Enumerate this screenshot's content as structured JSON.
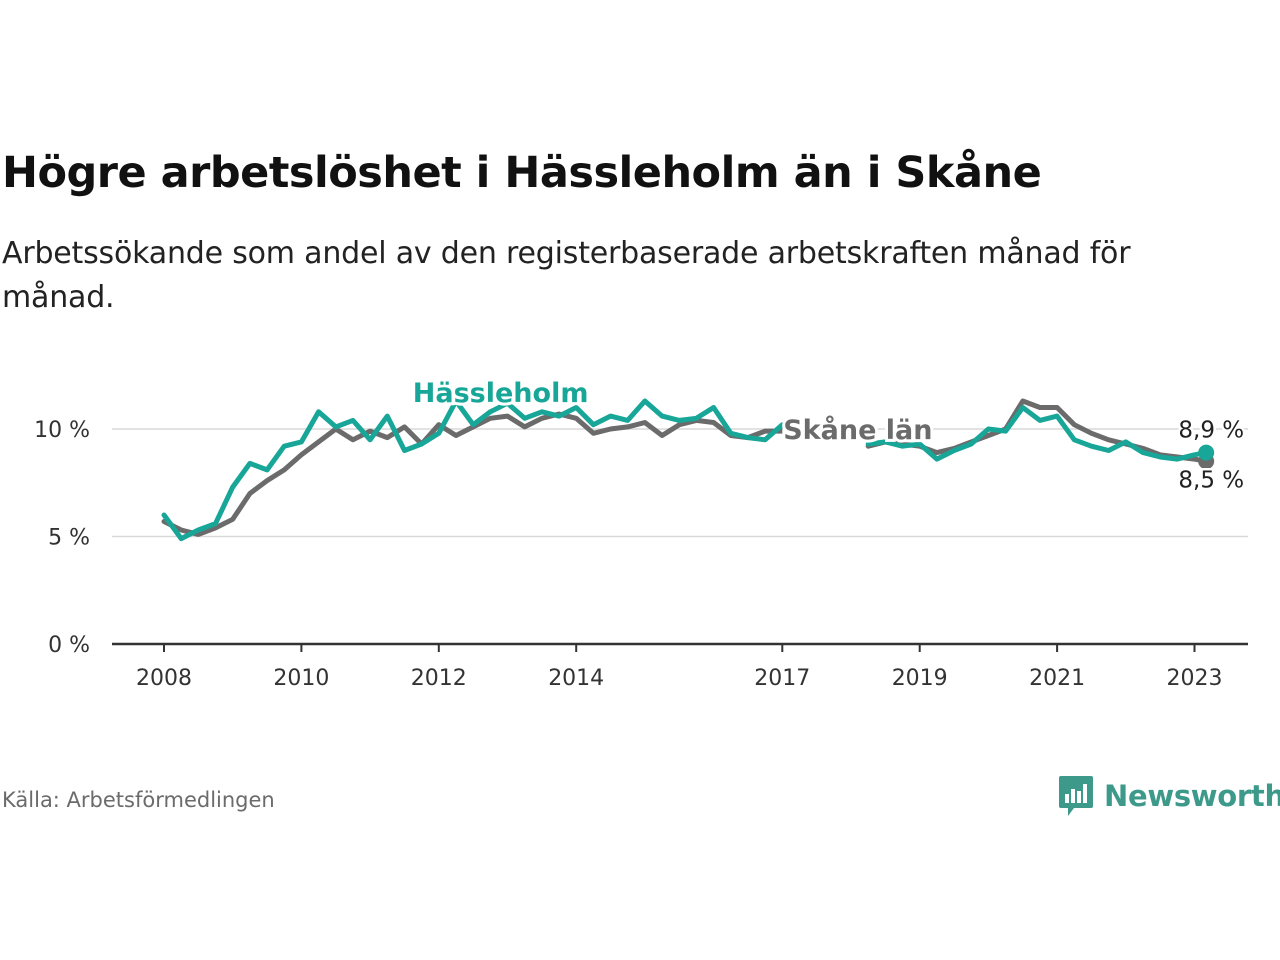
{
  "title": "Högre arbetslöshet i Hässleholm än i Skåne",
  "subtitle": "Arbetssökande som andel av den registerbaserade arbetskraften månad för månad.",
  "source": "Källa: Arbetsförmedlingen",
  "brand": {
    "name": "Newsworthy",
    "color": "#3d9a8b",
    "icon": "newsworthy-logo-icon"
  },
  "colors": {
    "hassleholm": "#17a697",
    "skane": "#6b6b6b",
    "grid": "#d9d9d9",
    "axis": "#333333"
  },
  "chart_data": {
    "type": "line",
    "title": "Högre arbetslöshet i Hässleholm än i Skåne",
    "xlabel": "",
    "ylabel": "",
    "xlim": [
      2008.0,
      2024.25
    ],
    "ylim": [
      0,
      12
    ],
    "y_ticks": [
      0,
      5,
      10
    ],
    "y_tick_labels": [
      "0 %",
      "5 %",
      "10 %"
    ],
    "x_ticks": [
      2008,
      2010,
      2012,
      2014,
      2017,
      2019,
      2021,
      2023
    ],
    "x_tick_labels": [
      "2008",
      "2010",
      "2012",
      "2014",
      "2017",
      "2019",
      "2021",
      "2023"
    ],
    "grid": true,
    "series": [
      {
        "name": "Skåne län",
        "label": "Skåne län",
        "color": "#6b6b6b",
        "end_label": "8,5 %",
        "points": [
          [
            2008.0,
            5.7
          ],
          [
            2008.25,
            5.3
          ],
          [
            2008.5,
            5.1
          ],
          [
            2008.75,
            5.4
          ],
          [
            2009.0,
            5.8
          ],
          [
            2009.25,
            7.0
          ],
          [
            2009.5,
            7.6
          ],
          [
            2009.75,
            8.1
          ],
          [
            2010.0,
            8.8
          ],
          [
            2010.25,
            9.4
          ],
          [
            2010.5,
            10.0
          ],
          [
            2010.75,
            9.5
          ],
          [
            2011.0,
            9.9
          ],
          [
            2011.25,
            9.6
          ],
          [
            2011.5,
            10.1
          ],
          [
            2011.75,
            9.3
          ],
          [
            2012.0,
            10.2
          ],
          [
            2012.25,
            9.7
          ],
          [
            2012.5,
            10.1
          ],
          [
            2012.75,
            10.5
          ],
          [
            2013.0,
            10.6
          ],
          [
            2013.25,
            10.1
          ],
          [
            2013.5,
            10.5
          ],
          [
            2013.75,
            10.7
          ],
          [
            2014.0,
            10.5
          ],
          [
            2014.25,
            9.8
          ],
          [
            2014.5,
            10.0
          ],
          [
            2014.75,
            10.1
          ],
          [
            2015.0,
            10.3
          ],
          [
            2015.25,
            9.7
          ],
          [
            2015.5,
            10.2
          ],
          [
            2015.75,
            10.4
          ],
          [
            2016.0,
            10.3
          ],
          [
            2016.25,
            9.7
          ],
          [
            2016.5,
            9.6
          ],
          [
            2016.75,
            9.9
          ],
          [
            2017.0,
            9.9
          ],
          [
            2018.25,
            9.2
          ],
          [
            2018.5,
            9.4
          ],
          [
            2018.75,
            9.3
          ],
          [
            2019.0,
            9.2
          ],
          [
            2019.25,
            8.9
          ],
          [
            2019.5,
            9.1
          ],
          [
            2019.75,
            9.4
          ],
          [
            2020.0,
            9.7
          ],
          [
            2020.25,
            10.0
          ],
          [
            2020.5,
            11.3
          ],
          [
            2020.75,
            11.0
          ],
          [
            2021.0,
            11.0
          ],
          [
            2021.25,
            10.2
          ],
          [
            2021.5,
            9.8
          ],
          [
            2021.75,
            9.5
          ],
          [
            2022.0,
            9.3
          ],
          [
            2022.25,
            9.1
          ],
          [
            2022.5,
            8.8
          ],
          [
            2022.75,
            8.7
          ],
          [
            2023.0,
            8.6
          ],
          [
            2023.17,
            8.5
          ]
        ]
      },
      {
        "name": "Hässleholm",
        "label": "Hässleholm",
        "color": "#17a697",
        "end_label": "8,9 %",
        "points": [
          [
            2008.0,
            6.0
          ],
          [
            2008.25,
            4.9
          ],
          [
            2008.5,
            5.3
          ],
          [
            2008.75,
            5.6
          ],
          [
            2009.0,
            7.3
          ],
          [
            2009.25,
            8.4
          ],
          [
            2009.5,
            8.1
          ],
          [
            2009.75,
            9.2
          ],
          [
            2010.0,
            9.4
          ],
          [
            2010.25,
            10.8
          ],
          [
            2010.5,
            10.1
          ],
          [
            2010.75,
            10.4
          ],
          [
            2011.0,
            9.5
          ],
          [
            2011.25,
            10.6
          ],
          [
            2011.5,
            9.0
          ],
          [
            2011.75,
            9.3
          ],
          [
            2012.0,
            9.8
          ],
          [
            2012.25,
            11.3
          ],
          [
            2012.5,
            10.2
          ],
          [
            2012.75,
            10.8
          ],
          [
            2013.0,
            11.2
          ],
          [
            2013.25,
            10.5
          ],
          [
            2013.5,
            10.8
          ],
          [
            2013.75,
            10.6
          ],
          [
            2014.0,
            11.0
          ],
          [
            2014.25,
            10.2
          ],
          [
            2014.5,
            10.6
          ],
          [
            2014.75,
            10.4
          ],
          [
            2015.0,
            11.3
          ],
          [
            2015.25,
            10.6
          ],
          [
            2015.5,
            10.4
          ],
          [
            2015.75,
            10.5
          ],
          [
            2016.0,
            11.0
          ],
          [
            2016.25,
            9.8
          ],
          [
            2016.5,
            9.6
          ],
          [
            2016.75,
            9.5
          ],
          [
            2017.0,
            10.2
          ],
          [
            2018.25,
            9.3
          ],
          [
            2018.5,
            9.4
          ],
          [
            2018.75,
            9.2
          ],
          [
            2019.0,
            9.3
          ],
          [
            2019.25,
            8.6
          ],
          [
            2019.5,
            9.0
          ],
          [
            2019.75,
            9.3
          ],
          [
            2020.0,
            10.0
          ],
          [
            2020.25,
            9.9
          ],
          [
            2020.5,
            11.0
          ],
          [
            2020.75,
            10.4
          ],
          [
            2021.0,
            10.6
          ],
          [
            2021.25,
            9.5
          ],
          [
            2021.5,
            9.2
          ],
          [
            2021.75,
            9.0
          ],
          [
            2022.0,
            9.4
          ],
          [
            2022.25,
            8.9
          ],
          [
            2022.5,
            8.7
          ],
          [
            2022.75,
            8.6
          ],
          [
            2023.0,
            8.8
          ],
          [
            2023.17,
            8.9
          ]
        ]
      }
    ]
  }
}
